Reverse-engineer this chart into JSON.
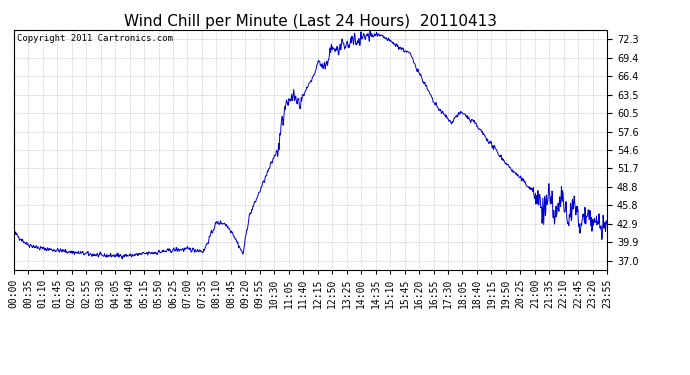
{
  "title": "Wind Chill per Minute (Last 24 Hours)  20110413",
  "copyright_text": "Copyright 2011 Cartronics.com",
  "line_color": "#0000cc",
  "bg_color": "#ffffff",
  "plot_bg_color": "#ffffff",
  "grid_color": "#bbbbbb",
  "yticks": [
    37.0,
    39.9,
    42.9,
    45.8,
    48.8,
    51.7,
    54.6,
    57.6,
    60.5,
    63.5,
    66.4,
    69.4,
    72.3
  ],
  "ylim": [
    35.5,
    73.8
  ],
  "title_fontsize": 11,
  "tick_fontsize": 7,
  "copyright_fontsize": 6.5,
  "xtick_labels": [
    "00:00",
    "00:35",
    "01:10",
    "01:45",
    "02:20",
    "02:55",
    "03:30",
    "04:05",
    "04:40",
    "05:15",
    "05:50",
    "06:25",
    "07:00",
    "07:35",
    "08:10",
    "08:45",
    "09:20",
    "09:55",
    "10:30",
    "11:05",
    "11:40",
    "12:15",
    "12:50",
    "13:25",
    "14:00",
    "14:35",
    "15:10",
    "15:45",
    "16:20",
    "16:55",
    "17:30",
    "18:05",
    "18:40",
    "19:15",
    "19:50",
    "20:25",
    "21:00",
    "21:35",
    "22:10",
    "22:45",
    "23:20",
    "23:55"
  ]
}
